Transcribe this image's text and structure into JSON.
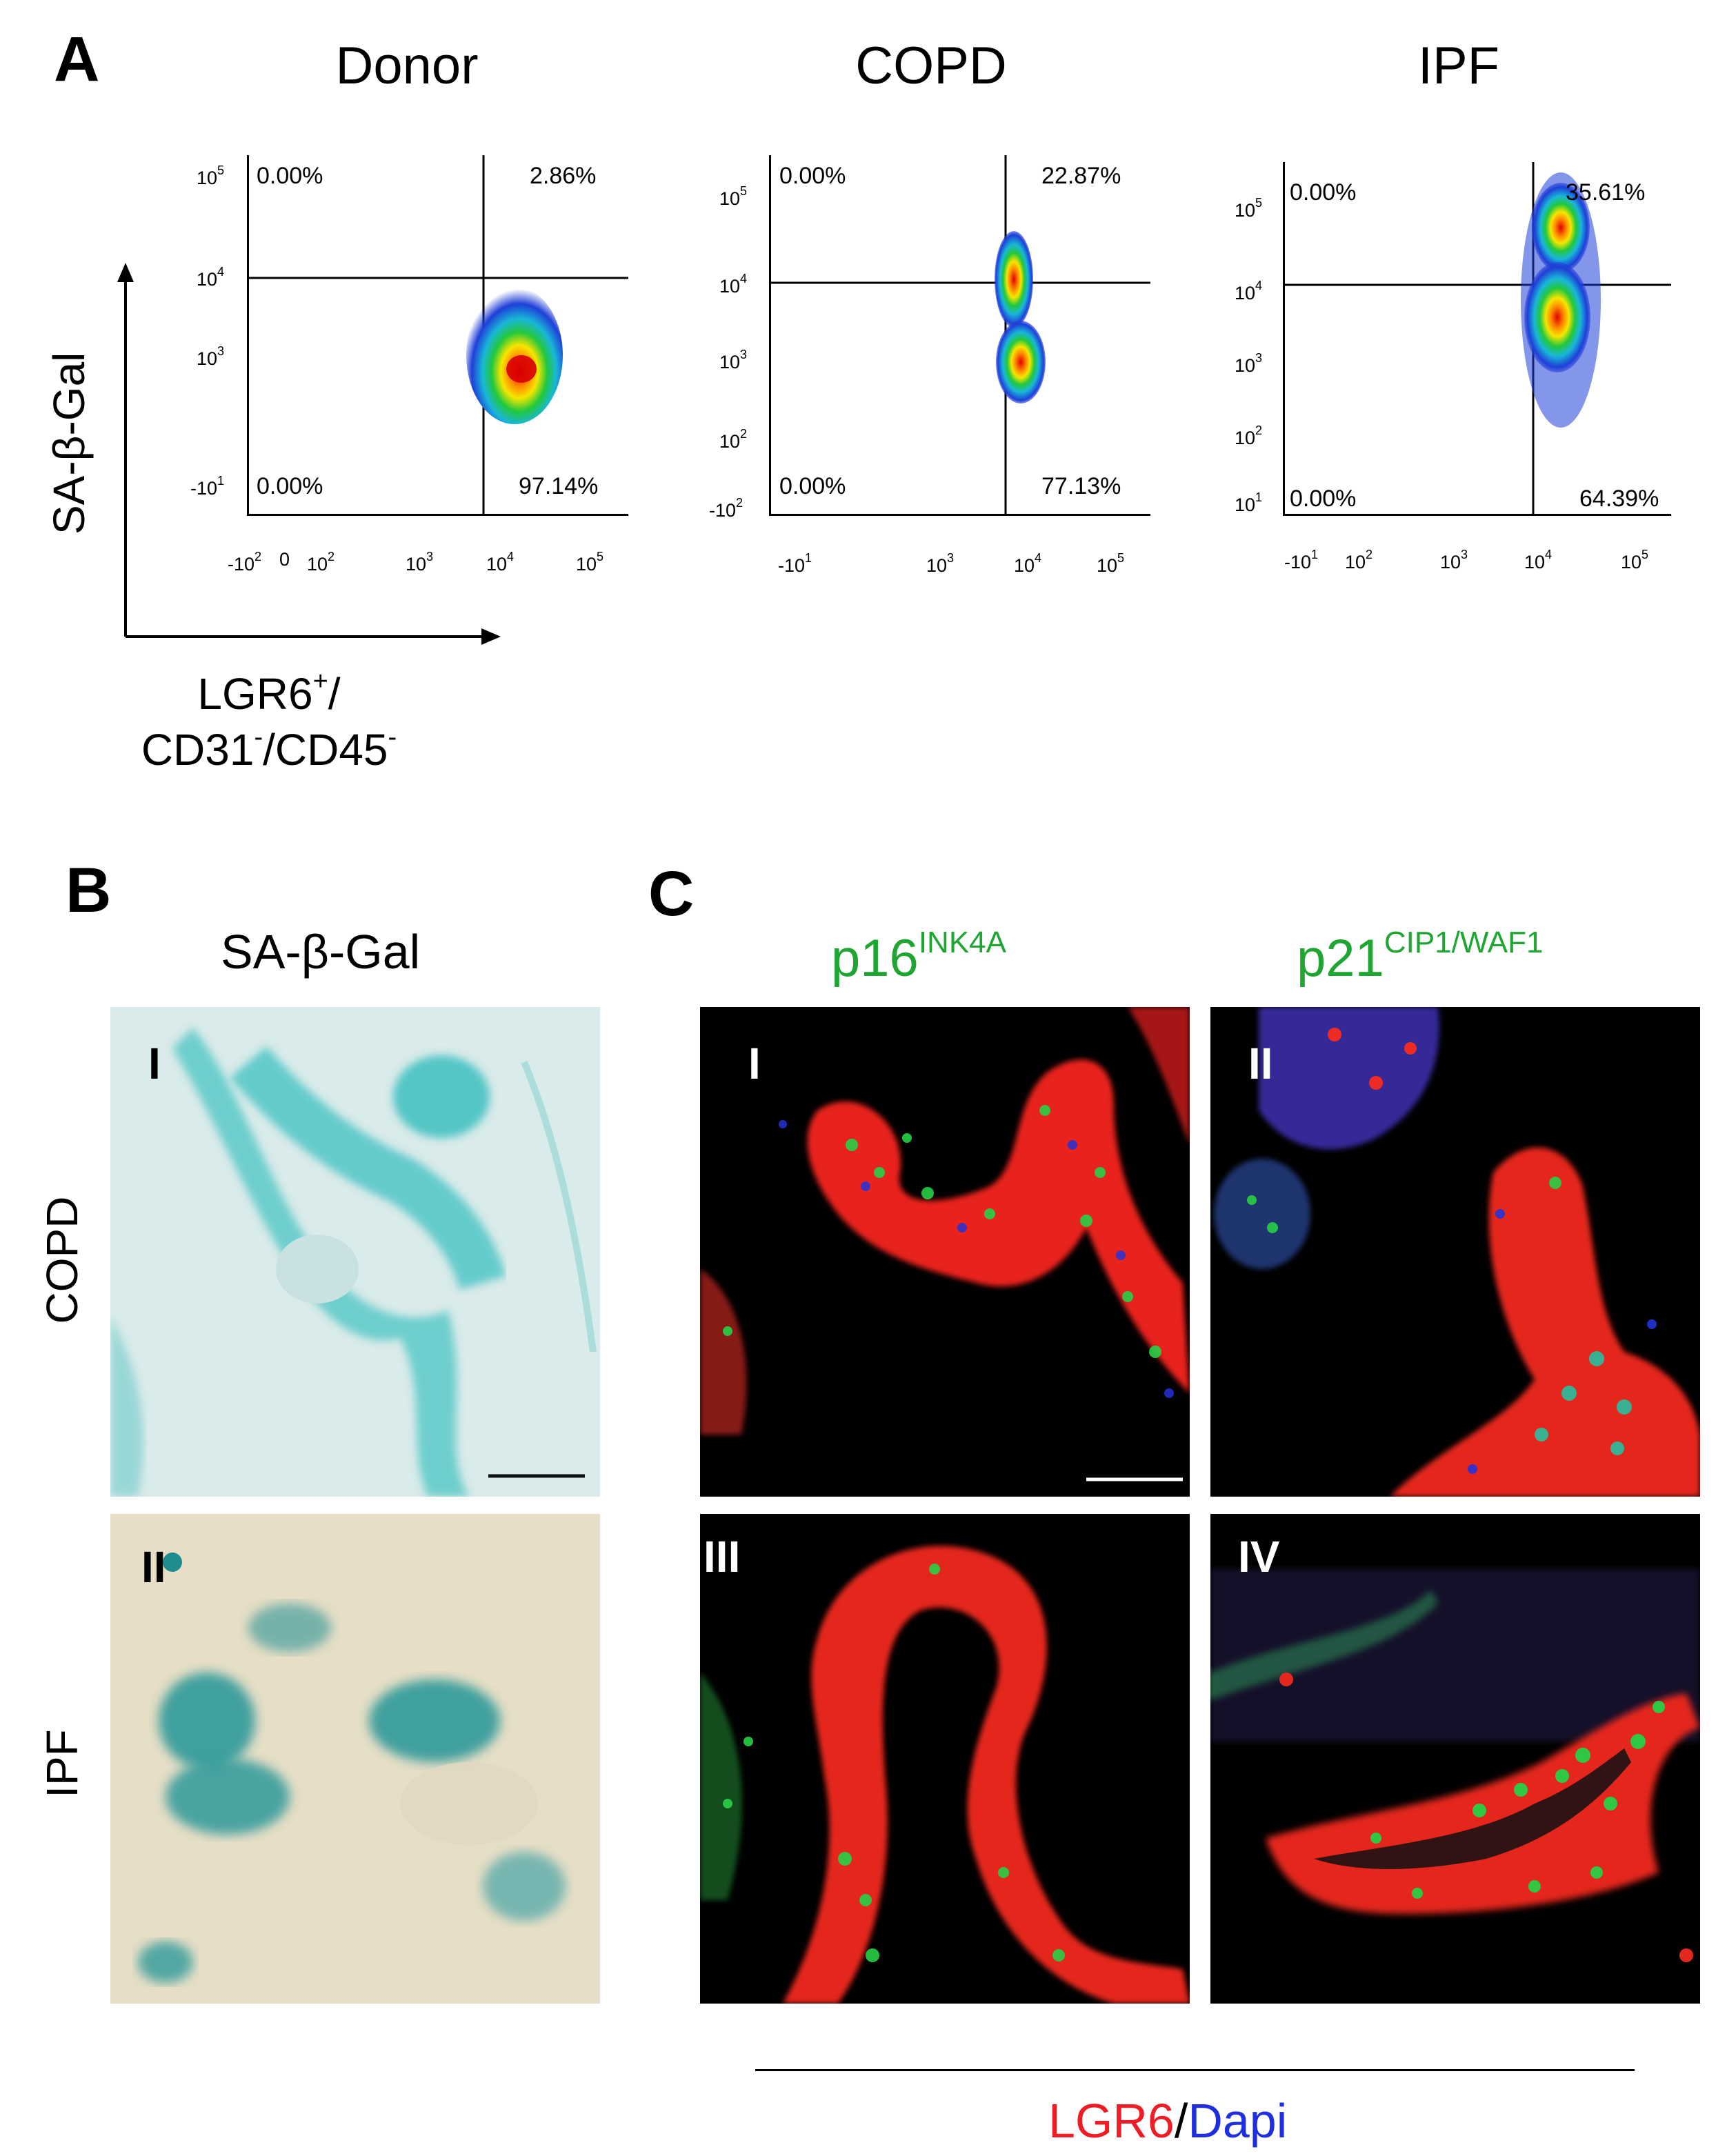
{
  "panel_a": {
    "letter": "A",
    "y_axis_label": "SA-β-Gal",
    "x_axis_label_line1": "LGR6",
    "x_axis_label_line1_sup": "+",
    "x_axis_label_line1_end": "/",
    "x_axis_label_line2_a": "CD31",
    "x_axis_label_line2_sup1": "-",
    "x_axis_label_line2_b": "/CD45",
    "x_axis_label_line2_sup2": "-",
    "plots": [
      {
        "title": "Donor",
        "quadrants": {
          "upper_left": "0.00%",
          "upper_right": "2.86%",
          "lower_left": "0.00%",
          "lower_right": "97.14%"
        },
        "y_ticks": [
          {
            "base": "10",
            "exp": "5"
          },
          {
            "base": "10",
            "exp": "4"
          },
          {
            "base": "10",
            "exp": "3"
          },
          {
            "base": "-10",
            "exp": "1"
          }
        ],
        "x_ticks": [
          {
            "base": "-10",
            "exp": "2"
          },
          {
            "base": "0",
            "exp": ""
          },
          {
            "base": "10",
            "exp": "2"
          },
          {
            "base": "10",
            "exp": "3"
          },
          {
            "base": "10",
            "exp": "4"
          },
          {
            "base": "10",
            "exp": "5"
          }
        ]
      },
      {
        "title": "COPD",
        "quadrants": {
          "upper_left": "0.00%",
          "upper_right": "22.87%",
          "lower_left": "0.00%",
          "lower_right": "77.13%"
        },
        "y_ticks": [
          {
            "base": "10",
            "exp": "5"
          },
          {
            "base": "10",
            "exp": "4"
          },
          {
            "base": "10",
            "exp": "3"
          },
          {
            "base": "10",
            "exp": "2"
          },
          {
            "base": "-10",
            "exp": "2"
          }
        ],
        "x_ticks": [
          {
            "base": "-10",
            "exp": "1"
          },
          {
            "base": "10",
            "exp": "3"
          },
          {
            "base": "10",
            "exp": "4"
          },
          {
            "base": "10",
            "exp": "5"
          }
        ]
      },
      {
        "title": "IPF",
        "quadrants": {
          "upper_left": "0.00%",
          "upper_right": "35.61%",
          "lower_left": "0.00%",
          "lower_right": "64.39%"
        },
        "y_ticks": [
          {
            "base": "10",
            "exp": "5"
          },
          {
            "base": "10",
            "exp": "4"
          },
          {
            "base": "10",
            "exp": "3"
          },
          {
            "base": "10",
            "exp": "2"
          },
          {
            "base": "10",
            "exp": "1"
          }
        ],
        "x_ticks": [
          {
            "base": "-10",
            "exp": "1"
          },
          {
            "base": "10",
            "exp": "2"
          },
          {
            "base": "10",
            "exp": "3"
          },
          {
            "base": "10",
            "exp": "4"
          },
          {
            "base": "10",
            "exp": "5"
          }
        ]
      }
    ]
  },
  "panel_b": {
    "letter": "B",
    "title": "SA-β-Gal",
    "rows": [
      {
        "label": "COPD",
        "roman": "I"
      },
      {
        "label": "IPF",
        "roman": "II"
      }
    ]
  },
  "panel_c": {
    "letter": "C",
    "col1_title": "p16",
    "col1_sup": "INK4A",
    "col2_title": "p21",
    "col2_sup": "CIP1/WAF1",
    "tiles": [
      "I",
      "II",
      "III",
      "IV"
    ],
    "legend_red": "LGR6",
    "legend_sep": "/",
    "legend_blue": "Dapi",
    "colors": {
      "red": "#ee1c24",
      "blue": "#1f2fe0",
      "green": "#1fa532",
      "stain": "#2ab7b8"
    }
  }
}
